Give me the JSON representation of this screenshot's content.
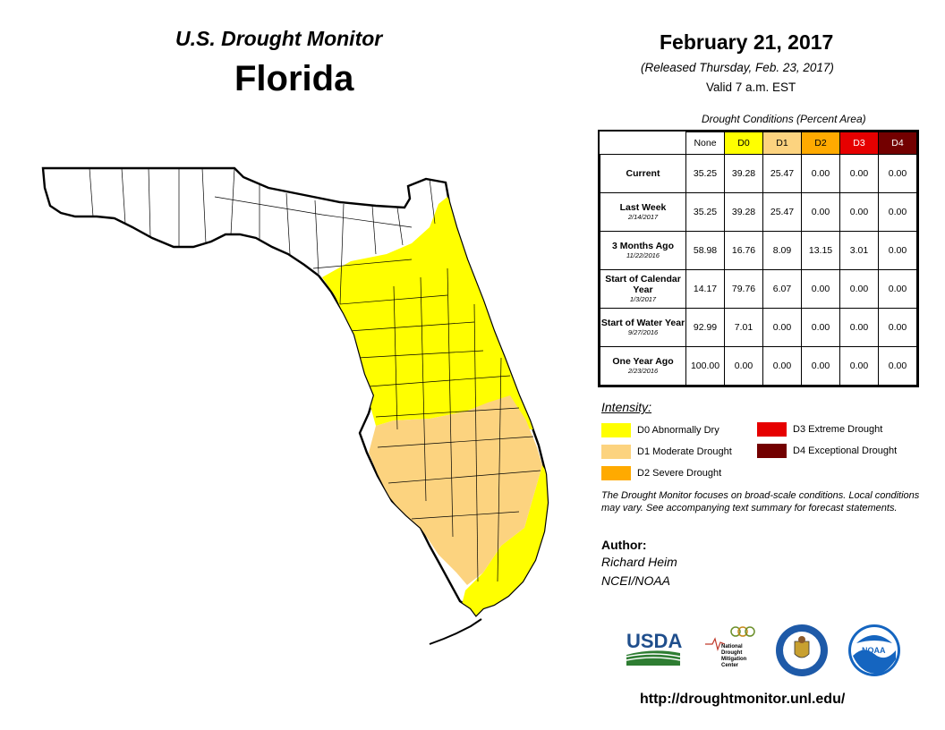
{
  "header": {
    "monitor_title": "U.S. Drought Monitor",
    "state": "Florida",
    "date": "February 21, 2017",
    "released": "(Released Thursday, Feb. 23, 2017)",
    "valid": "Valid 7 a.m. EST"
  },
  "table": {
    "caption": "Drought Conditions (Percent Area)",
    "columns": [
      "None",
      "D0",
      "D1",
      "D2",
      "D3",
      "D4"
    ],
    "column_colors": [
      "#ffffff",
      "#ffff00",
      "#fcd37f",
      "#ffaa00",
      "#e60000",
      "#730000"
    ],
    "rows": [
      {
        "label": "Current",
        "sub": "",
        "values": [
          "35.25",
          "39.28",
          "25.47",
          "0.00",
          "0.00",
          "0.00"
        ]
      },
      {
        "label": "Last Week",
        "sub": "2/14/2017",
        "values": [
          "35.25",
          "39.28",
          "25.47",
          "0.00",
          "0.00",
          "0.00"
        ]
      },
      {
        "label": "3 Months Ago",
        "sub": "11/22/2016",
        "values": [
          "58.98",
          "16.76",
          "8.09",
          "13.15",
          "3.01",
          "0.00"
        ]
      },
      {
        "label": "Start of Calendar Year",
        "sub": "1/3/2017",
        "values": [
          "14.17",
          "79.76",
          "6.07",
          "0.00",
          "0.00",
          "0.00"
        ]
      },
      {
        "label": "Start of Water Year",
        "sub": "9/27/2016",
        "values": [
          "92.99",
          "7.01",
          "0.00",
          "0.00",
          "0.00",
          "0.00"
        ]
      },
      {
        "label": "One Year Ago",
        "sub": "2/23/2016",
        "values": [
          "100.00",
          "0.00",
          "0.00",
          "0.00",
          "0.00",
          "0.00"
        ]
      }
    ]
  },
  "legend": {
    "title": "Intensity:",
    "items": [
      {
        "code": "D0",
        "label": "D0 Abnormally Dry",
        "color": "#ffff00"
      },
      {
        "code": "D1",
        "label": "D1 Moderate Drought",
        "color": "#fcd37f"
      },
      {
        "code": "D2",
        "label": "D2 Severe Drought",
        "color": "#ffaa00"
      },
      {
        "code": "D3",
        "label": "D3 Extreme Drought",
        "color": "#e60000"
      },
      {
        "code": "D4",
        "label": "D4 Exceptional Drought",
        "color": "#730000"
      }
    ]
  },
  "note": "The Drought Monitor focuses on broad-scale conditions. Local conditions may vary. See accompanying text summary for forecast statements.",
  "author": {
    "label": "Author:",
    "name": "Richard Heim",
    "org": "NCEI/NOAA"
  },
  "logos": {
    "usda": "USDA",
    "ndmc_lines": [
      "National",
      "Drought",
      "Mitigation",
      "Center"
    ],
    "noaa": "NOAA"
  },
  "url": "http://droughtmonitor.unl.edu/",
  "map": {
    "region": "Florida",
    "zones": [
      {
        "category": "none",
        "color": "#ffffff",
        "area": "panhandle and north"
      },
      {
        "category": "D0",
        "color": "#ffff00",
        "area": "north-central, central and east coast, southeast"
      },
      {
        "category": "D1",
        "color": "#fcd37f",
        "area": "southwest and south-central"
      }
    ]
  }
}
